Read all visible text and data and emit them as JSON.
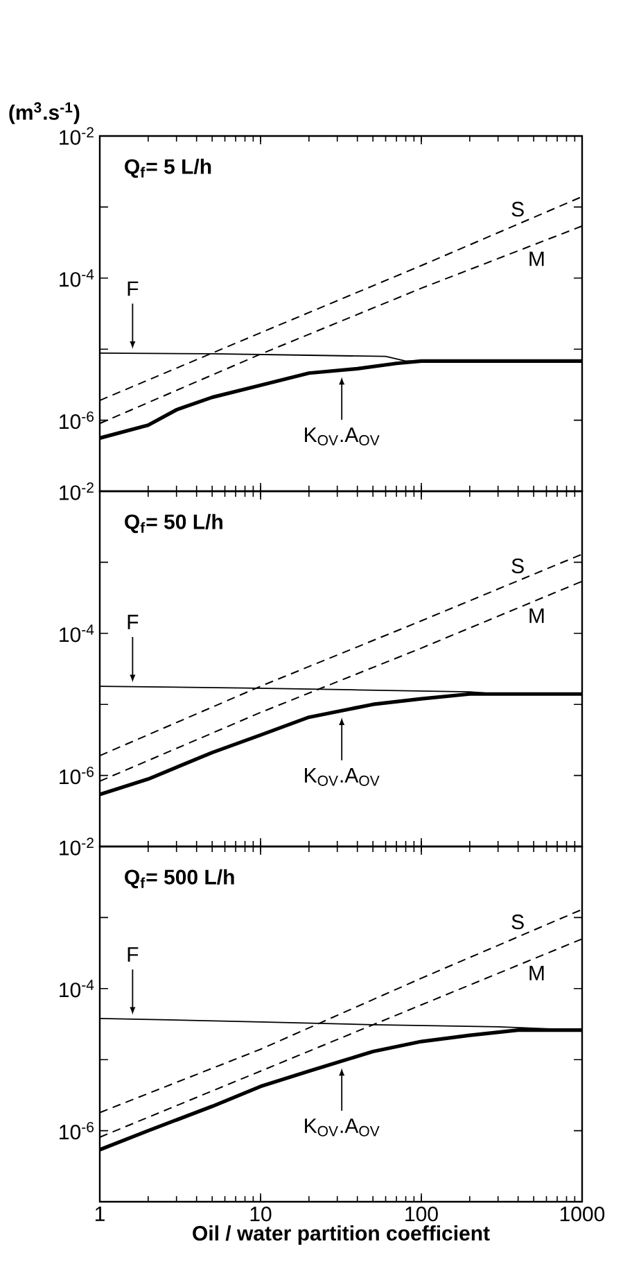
{
  "chart_data": [
    {
      "type": "line",
      "title": "Q$_{f}$= 5 L/h",
      "ylabel": "(m$^{3}$.s$^{-1}$)",
      "log": "xy",
      "tick_labels": "y",
      "xlim": [
        1,
        1000
      ],
      "xticks": [
        1,
        10,
        100,
        1000
      ],
      "ylim": [
        1e-07,
        0.01
      ],
      "yticks": [
        {
          "value": 0.01,
          "label": "10$^{-2}$"
        },
        {
          "value": 0.001,
          "label": null
        },
        {
          "value": 0.0001,
          "label": "10$^{-4}$"
        },
        {
          "value": 1e-05,
          "label": null
        },
        {
          "value": 1e-06,
          "label": "10$^{-6}$"
        },
        {
          "value": 1e-07,
          "label": null
        }
      ],
      "series": [
        {
          "name": "F",
          "color": "#000000",
          "line_style": "solid",
          "x": [
            1,
            5,
            20,
            60,
            80,
            1000
          ],
          "values": [
            8.8e-06,
            8.6e-06,
            8.2e-06,
            7.9e-06,
            6.8e-06,
            6.8e-06
          ]
        },
        {
          "name": "K$_{OV}$.A$_{OV}$",
          "color": "#000000",
          "line_style": "solid",
          "x": [
            1,
            2,
            3,
            5,
            10,
            20,
            40,
            70,
            100,
            1000
          ],
          "values": [
            5.6e-07,
            8.5e-07,
            1.4e-06,
            2.1e-06,
            3.1e-06,
            4.6e-06,
            5.3e-06,
            6.3e-06,
            6.8e-06,
            6.8e-06
          ]
        },
        {
          "name": "S",
          "color": "#000000",
          "line_style": "dashed",
          "x": [
            1,
            10,
            100,
            1000
          ],
          "values": [
            1.9e-06,
            1.7e-05,
            0.00015,
            0.0014
          ]
        },
        {
          "name": "M",
          "color": "#000000",
          "line_style": "dashed",
          "x": [
            1,
            10,
            100,
            1000
          ],
          "values": [
            9e-07,
            8.5e-06,
            7.2e-05,
            0.00054
          ]
        }
      ]
    },
    {
      "type": "line",
      "title": "Q$_{f}$= 50 L/h",
      "log": "xy",
      "tick_labels": "y",
      "xlim": [
        1,
        1000
      ],
      "xticks": [
        1,
        10,
        100,
        1000
      ],
      "ylim": [
        1e-07,
        0.01
      ],
      "yticks": [
        {
          "value": 0.01,
          "label": "10$^{-2}$"
        },
        {
          "value": 0.001,
          "label": null
        },
        {
          "value": 0.0001,
          "label": "10$^{-4}$"
        },
        {
          "value": 1e-05,
          "label": null
        },
        {
          "value": 1e-06,
          "label": "10$^{-6}$"
        },
        {
          "value": 1e-07,
          "label": null
        }
      ],
      "series": [
        {
          "name": "F",
          "color": "#000000",
          "line_style": "solid",
          "x": [
            1,
            8,
            40,
            200,
            300,
            1000
          ],
          "values": [
            1.8e-05,
            1.7e-05,
            1.6e-05,
            1.5e-05,
            1.4e-05,
            1.4e-05
          ]
        },
        {
          "name": "K$_{OV}$.A$_{OV}$",
          "color": "#000000",
          "line_style": "solid",
          "x": [
            1,
            2,
            5,
            10,
            20,
            50,
            100,
            200,
            1000
          ],
          "values": [
            5.4e-07,
            8.9e-07,
            2.1e-06,
            3.7e-06,
            6.6e-06,
            1e-05,
            1.2e-05,
            1.4e-05,
            1.4e-05
          ]
        },
        {
          "name": "S",
          "color": "#000000",
          "line_style": "dashed",
          "x": [
            1,
            10,
            100,
            1000
          ],
          "values": [
            1.9e-06,
            1.8e-05,
            0.00015,
            0.0013
          ]
        },
        {
          "name": "M",
          "color": "#000000",
          "line_style": "dashed",
          "x": [
            1,
            10,
            100,
            1000
          ],
          "values": [
            8.3e-07,
            7.7e-06,
            6.2e-05,
            0.00054
          ]
        }
      ]
    },
    {
      "type": "line",
      "title": "Q$_{f}$= 500 L/h",
      "xlabel": "Oil / water partition coefficient",
      "log": "xy",
      "xlim": [
        1,
        1000
      ],
      "xticks": [
        1,
        10,
        100,
        1000
      ],
      "ylim": [
        1e-07,
        0.01
      ],
      "yticks": [
        {
          "value": 0.01,
          "label": "10$^{-2}$"
        },
        {
          "value": 0.001,
          "label": null
        },
        {
          "value": 0.0001,
          "label": "10$^{-4}$"
        },
        {
          "value": 1e-05,
          "label": null
        },
        {
          "value": 1e-06,
          "label": "10$^{-6}$"
        },
        {
          "value": 1e-07,
          "label": null
        }
      ],
      "series": [
        {
          "name": "F",
          "color": "#000000",
          "line_style": "solid",
          "x": [
            1,
            10,
            50,
            300,
            1000
          ],
          "values": [
            3.8e-05,
            3.4e-05,
            3.1e-05,
            2.9e-05,
            2.6e-05
          ]
        },
        {
          "name": "K$_{OV}$.A$_{OV}$",
          "color": "#000000",
          "line_style": "solid",
          "x": [
            1,
            2,
            5,
            10,
            20,
            50,
            100,
            200,
            400,
            1000
          ],
          "values": [
            5.4e-07,
            1e-06,
            2.2e-06,
            4.2e-06,
            6.9e-06,
            1.3e-05,
            1.8e-05,
            2.2e-05,
            2.6e-05,
            2.6e-05
          ]
        },
        {
          "name": "S",
          "color": "#000000",
          "line_style": "dashed",
          "x": [
            1,
            10,
            100,
            1000
          ],
          "values": [
            1.8e-06,
            1.4e-05,
            0.00014,
            0.0013
          ]
        },
        {
          "name": "M",
          "color": "#000000",
          "line_style": "dashed",
          "x": [
            1,
            10,
            100,
            1000
          ],
          "values": [
            8.1e-07,
            6.9e-06,
            5.9e-05,
            0.0005
          ]
        }
      ]
    }
  ]
}
